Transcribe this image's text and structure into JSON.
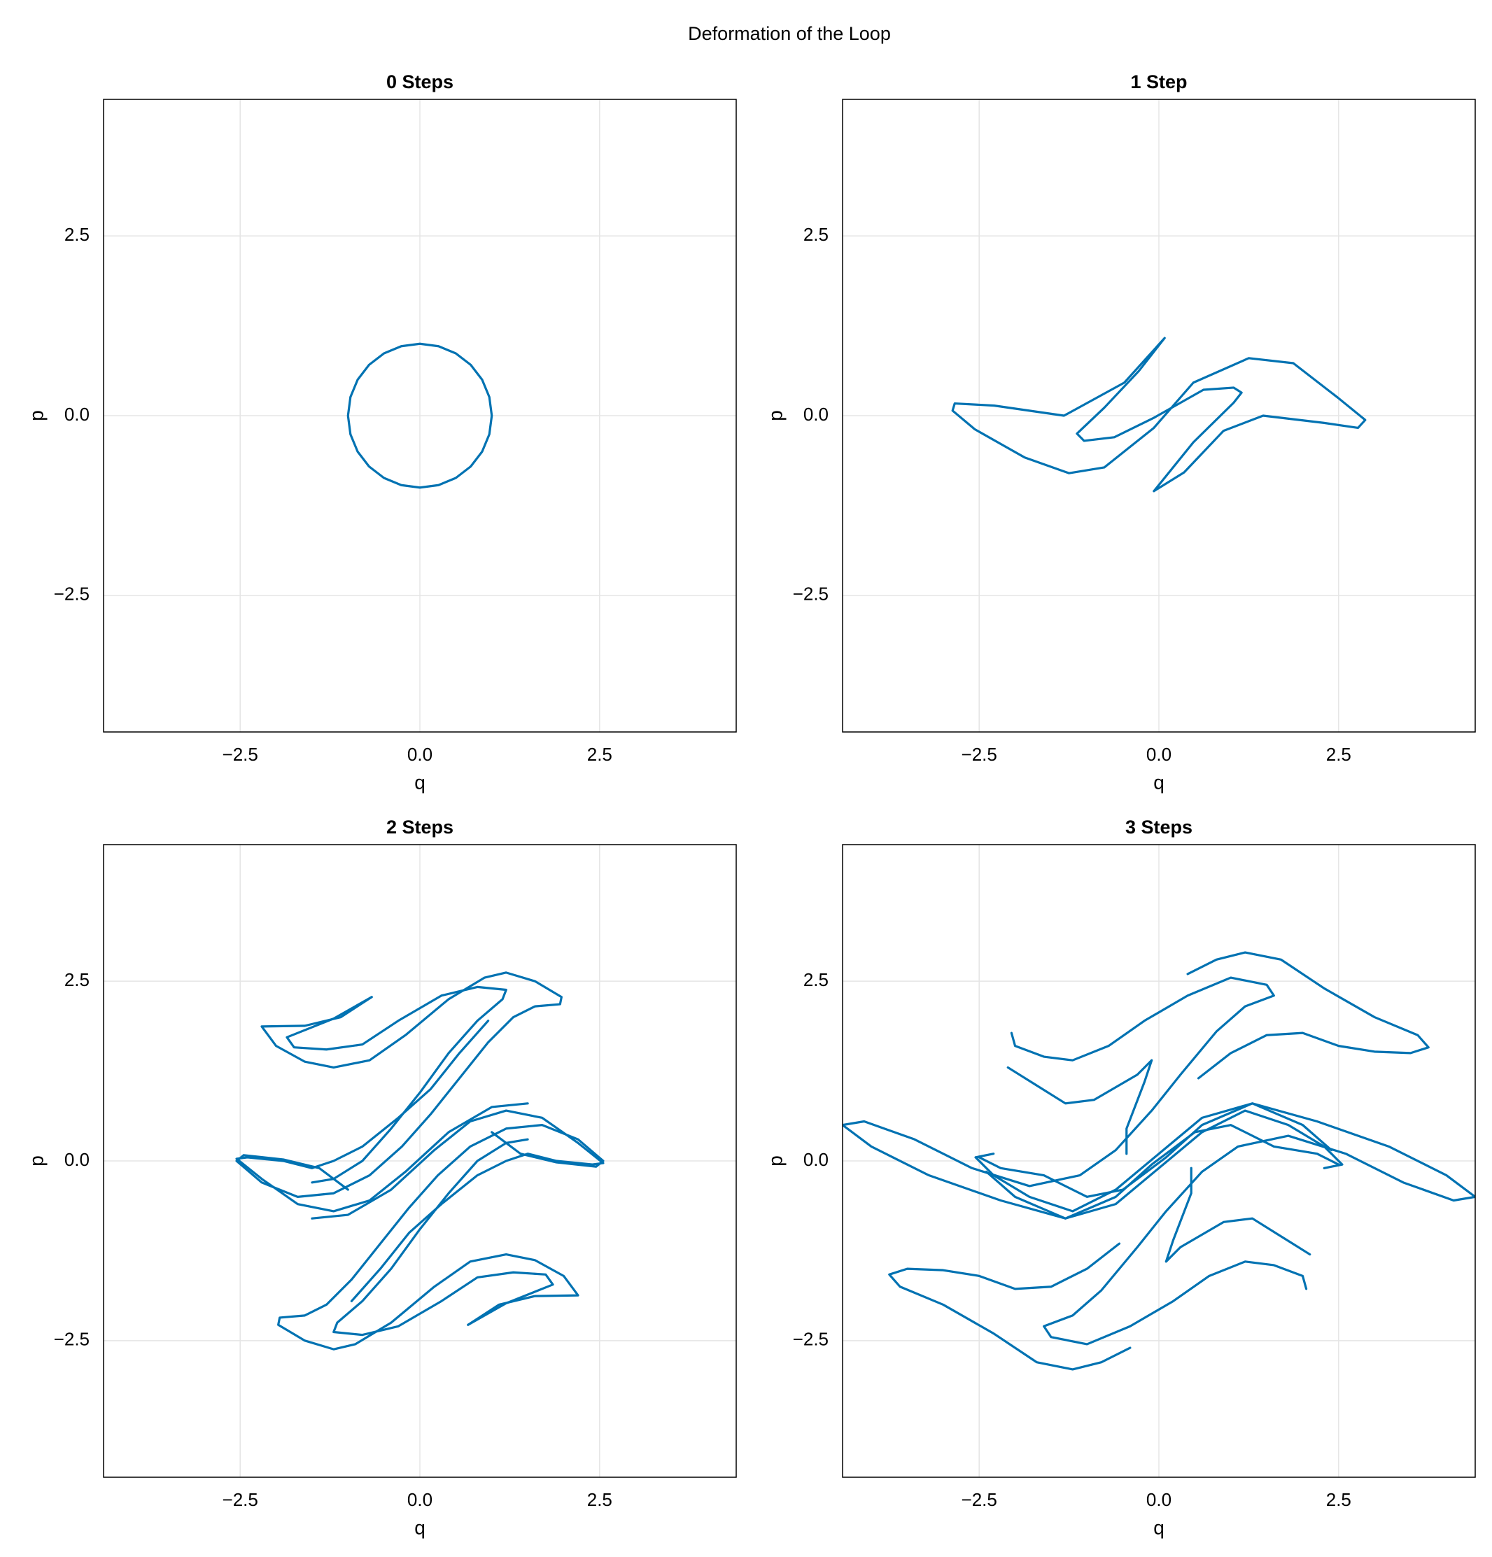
{
  "title": "Deformation of the Loop",
  "chart_data": [
    {
      "type": "line",
      "title": "0 Steps",
      "xlabel": "q",
      "ylabel": "p",
      "xlim": [
        -4.4,
        4.4
      ],
      "ylim": [
        -4.4,
        4.4
      ],
      "xticks": [
        {
          "value": -2.5,
          "label": "−2.5"
        },
        {
          "value": 0,
          "label": "0.0"
        },
        2.5
      ],
      "yticks": [
        {
          "value": -2.5,
          "label": "−2.5"
        },
        {
          "value": 0,
          "label": "0.0"
        },
        2.5
      ],
      "grid": true,
      "series": [
        {
          "color": "#0072b2",
          "x": [
            1,
            0.966,
            0.866,
            0.707,
            0.5,
            0.259,
            0,
            -0.259,
            -0.5,
            -0.707,
            -0.866,
            -0.966,
            -1,
            -0.966,
            -0.866,
            -0.707,
            -0.5,
            -0.259,
            0,
            0.259,
            0.5,
            0.707,
            0.866,
            0.966,
            1
          ],
          "y": [
            0,
            0.259,
            0.5,
            0.707,
            0.866,
            0.966,
            1,
            0.966,
            0.866,
            0.707,
            0.5,
            0.259,
            0,
            -0.259,
            -0.5,
            -0.707,
            -0.866,
            -0.966,
            -1,
            -0.966,
            -0.866,
            -0.707,
            -0.5,
            -0.259,
            0
          ]
        }
      ]
    },
    {
      "type": "line",
      "title": "1 Step",
      "xlabel": "q",
      "ylabel": "p",
      "xlim": [
        -4.4,
        4.4
      ],
      "ylim": [
        -4.4,
        4.4
      ],
      "xticks": [
        {
          "value": -2.5,
          "label": "−2.5"
        },
        {
          "value": 0,
          "label": "0.0"
        },
        2.5
      ],
      "yticks": [
        {
          "value": -2.5,
          "label": "−2.5"
        },
        {
          "value": 0,
          "label": "0.0"
        },
        2.5
      ],
      "grid": true,
      "series": [
        {
          "color": "#0072b2",
          "x": [
            0.08,
            -0.28,
            -0.76,
            -1.14,
            -1.04,
            -0.62,
            -0.07,
            0.62,
            1.04,
            1.15,
            1.04,
            0.48,
            -0.07,
            0.35,
            0.9,
            1.45,
            2.29,
            2.77,
            2.87,
            2.49,
            1.87,
            1.25,
            0.48,
            -0.07,
            -0.76,
            -1.25,
            -1.87,
            -2.56,
            -2.87,
            -2.84,
            -2.29,
            -1.32,
            -0.48,
            0.08
          ],
          "y": [
            1.08,
            0.62,
            0.11,
            -0.25,
            -0.35,
            -0.3,
            -0.03,
            0.36,
            0.39,
            0.32,
            0.18,
            -0.37,
            -1.05,
            -0.79,
            -0.21,
            0,
            -0.1,
            -0.17,
            -0.06,
            0.25,
            0.73,
            0.8,
            0.46,
            -0.17,
            -0.72,
            -0.8,
            -0.58,
            -0.19,
            0.07,
            0.17,
            0.14,
            0,
            0.46,
            1.08
          ]
        }
      ]
    },
    {
      "type": "line",
      "title": "2 Steps",
      "xlabel": "q",
      "ylabel": "p",
      "xlim": [
        -4.4,
        4.4
      ],
      "ylim": [
        -4.4,
        4.4
      ],
      "xticks": [
        {
          "value": -2.5,
          "label": "−2.5"
        },
        {
          "value": 0,
          "label": "0.0"
        },
        2.5
      ],
      "yticks": [
        {
          "value": -2.5,
          "label": "−2.5"
        },
        {
          "value": 0,
          "label": "0.0"
        },
        2.5
      ],
      "grid": true,
      "series": [
        {
          "color": "#0072b2",
          "x": [
            -0.67,
            -1.1,
            -1.6,
            -2.2,
            -2.0,
            -1.6,
            -1.2,
            -0.7,
            -0.2,
            0.4,
            0.9,
            1.2,
            1.6,
            1.97,
            1.95,
            1.6,
            1.3,
            0.95,
            0.55,
            0.15,
            -0.25,
            -0.7,
            -1.2,
            -1.7,
            -2.2,
            -2.55,
            -2.45,
            -1.9,
            -1.4,
            -1.0
          ],
          "y": [
            2.28,
            2.0,
            1.88,
            1.87,
            1.6,
            1.38,
            1.3,
            1.4,
            1.75,
            2.25,
            2.55,
            2.62,
            2.5,
            2.28,
            2.18,
            2.15,
            2.0,
            1.65,
            1.15,
            0.65,
            0.2,
            -0.2,
            -0.45,
            -0.5,
            -0.3,
            0,
            0.08,
            0.02,
            -0.1,
            -0.4
          ]
        },
        {
          "color": "#0072b2",
          "x": [
            -0.67,
            -1.2,
            -1.85,
            -1.75,
            -1.3,
            -0.8,
            -0.3,
            0.3,
            0.8,
            1.2,
            1.15,
            0.8,
            0.4,
            0,
            -0.4,
            -0.8,
            -1.2,
            -1.5
          ],
          "y": [
            2.28,
            1.98,
            1.72,
            1.58,
            1.55,
            1.62,
            1.95,
            2.3,
            2.42,
            2.38,
            2.25,
            1.95,
            1.5,
            0.95,
            0.45,
            0,
            -0.25,
            -0.3
          ]
        },
        {
          "color": "#0072b2",
          "x": [
            -1.5,
            -1.0,
            -0.4,
            0.2,
            0.7,
            1.2,
            1.7,
            2.2,
            2.55,
            2.4,
            1.9,
            1.5,
            1.2,
            0.8,
            0.3,
            -0.15,
            -0.55,
            -0.95
          ],
          "y": [
            -0.8,
            -0.75,
            -0.4,
            0.15,
            0.55,
            0.7,
            0.6,
            0.25,
            -0.03,
            -0.05,
            0,
            0.1,
            0,
            -0.2,
            -0.6,
            -1.0,
            -1.5,
            -1.95
          ]
        },
        {
          "color": "#0072b2",
          "x": [
            0.67,
            1.1,
            1.6,
            2.2,
            2.0,
            1.6,
            1.2,
            0.7,
            0.2,
            -0.4,
            -0.9,
            -1.2,
            -1.6,
            -1.97,
            -1.95,
            -1.6,
            -1.3,
            -0.95,
            -0.55,
            -0.15,
            0.25,
            0.7,
            1.2,
            1.7,
            2.2,
            2.55,
            2.45,
            1.9,
            1.4,
            1.0
          ],
          "y": [
            -2.28,
            -2.0,
            -1.88,
            -1.87,
            -1.6,
            -1.38,
            -1.3,
            -1.4,
            -1.75,
            -2.25,
            -2.55,
            -2.62,
            -2.5,
            -2.28,
            -2.18,
            -2.15,
            -2.0,
            -1.65,
            -1.15,
            -0.65,
            -0.2,
            0.2,
            0.45,
            0.5,
            0.3,
            0,
            -0.08,
            -0.02,
            0.1,
            0.4
          ]
        },
        {
          "color": "#0072b2",
          "x": [
            0.67,
            1.2,
            1.85,
            1.75,
            1.3,
            0.8,
            0.3,
            -0.3,
            -0.8,
            -1.2,
            -1.15,
            -0.8,
            -0.4,
            0,
            0.4,
            0.8,
            1.2,
            1.5
          ],
          "y": [
            -2.28,
            -1.98,
            -1.72,
            -1.58,
            -1.55,
            -1.62,
            -1.95,
            -2.3,
            -2.42,
            -2.38,
            -2.25,
            -1.95,
            -1.5,
            -0.95,
            -0.45,
            0,
            0.25,
            0.3
          ]
        },
        {
          "color": "#0072b2",
          "x": [
            1.5,
            1.0,
            0.4,
            -0.2,
            -0.7,
            -1.2,
            -1.7,
            -2.2,
            -2.55,
            -2.4,
            -1.9,
            -1.5,
            -1.2,
            -0.8,
            -0.3,
            0.15,
            0.55,
            0.95
          ],
          "y": [
            0.8,
            0.75,
            0.4,
            -0.15,
            -0.55,
            -0.7,
            -0.6,
            -0.25,
            0.03,
            0.05,
            0,
            -0.1,
            0,
            0.2,
            0.6,
            1.0,
            1.5,
            1.95
          ]
        }
      ]
    },
    {
      "type": "line",
      "title": "3 Steps",
      "xlabel": "q",
      "ylabel": "p",
      "xlim": [
        -4.4,
        4.4
      ],
      "ylim": [
        -4.4,
        4.4
      ],
      "xticks": [
        {
          "value": -2.5,
          "label": "−2.5"
        },
        {
          "value": 0,
          "label": "0.0"
        },
        2.5
      ],
      "yticks": [
        {
          "value": -2.5,
          "label": "−2.5"
        },
        {
          "value": 0,
          "label": "0.0"
        },
        2.5
      ],
      "grid": true,
      "series": [
        {
          "color": "#0072b2",
          "x": [
            0.4,
            0.8,
            1.2,
            1.7,
            2.3,
            3.0,
            3.6,
            3.75,
            3.5,
            3.0,
            2.5,
            2.0,
            1.5,
            1.0,
            0.55
          ],
          "y": [
            2.6,
            2.8,
            2.9,
            2.8,
            2.4,
            2.0,
            1.75,
            1.58,
            1.5,
            1.52,
            1.6,
            1.78,
            1.75,
            1.5,
            1.15
          ]
        },
        {
          "color": "#0072b2",
          "x": [
            -2.05,
            -2.0,
            -1.6,
            -1.2,
            -0.7,
            -0.2,
            0.4,
            1.0,
            1.5,
            1.6,
            1.2,
            0.8,
            0.3,
            -0.1,
            -0.6,
            -1.1,
            -1.8,
            -2.6,
            -3.4,
            -4.1,
            -4.4,
            -4.0,
            -3.2,
            -2.2,
            -1.3,
            -0.6,
            0,
            0.6,
            1.2,
            1.8,
            2.3,
            2.55,
            2.3
          ],
          "y": [
            1.78,
            1.6,
            1.45,
            1.4,
            1.6,
            1.95,
            2.3,
            2.55,
            2.45,
            2.3,
            2.15,
            1.8,
            1.2,
            0.7,
            0.15,
            -0.2,
            -0.35,
            -0.1,
            0.3,
            0.55,
            0.5,
            0.2,
            -0.2,
            -0.55,
            -0.8,
            -0.6,
            -0.1,
            0.4,
            0.7,
            0.5,
            0.2,
            -0.05,
            -0.1
          ]
        },
        {
          "color": "#0072b2",
          "x": [
            -2.1,
            -1.7,
            -1.3,
            -0.9,
            -0.3,
            -0.1,
            -0.2,
            -0.45,
            -0.45
          ],
          "y": [
            1.3,
            1.05,
            0.8,
            0.85,
            1.2,
            1.4,
            1.1,
            0.45,
            0.1
          ]
        },
        {
          "color": "#0072b2",
          "x": [
            -2.5,
            -2.2,
            -1.6,
            -1.0,
            -0.5,
            0.1,
            0.6,
            1.3,
            2.0,
            2.4
          ],
          "y": [
            0.05,
            -0.1,
            -0.2,
            -0.5,
            -0.4,
            0.05,
            0.5,
            0.8,
            0.5,
            0.15
          ]
        },
        {
          "color": "#0072b2",
          "x": [
            -0.4,
            -0.8,
            -1.2,
            -1.7,
            -2.3,
            -3.0,
            -3.6,
            -3.75,
            -3.5,
            -3.0,
            -2.5,
            -2.0,
            -1.5,
            -1.0,
            -0.55
          ],
          "y": [
            -2.6,
            -2.8,
            -2.9,
            -2.8,
            -2.4,
            -2.0,
            -1.75,
            -1.58,
            -1.5,
            -1.52,
            -1.6,
            -1.78,
            -1.75,
            -1.5,
            -1.15
          ]
        },
        {
          "color": "#0072b2",
          "x": [
            2.05,
            2.0,
            1.6,
            1.2,
            0.7,
            0.2,
            -0.4,
            -1.0,
            -1.5,
            -1.6,
            -1.2,
            -0.8,
            -0.3,
            0.1,
            0.6,
            1.1,
            1.8,
            2.6,
            3.4,
            4.1,
            4.4,
            4.0,
            3.2,
            2.2,
            1.3,
            0.6,
            0,
            -0.6,
            -1.2,
            -1.8,
            -2.3,
            -2.55,
            -2.3
          ],
          "y": [
            -1.78,
            -1.6,
            -1.45,
            -1.4,
            -1.6,
            -1.95,
            -2.3,
            -2.55,
            -2.45,
            -2.3,
            -2.15,
            -1.8,
            -1.2,
            -0.7,
            -0.15,
            0.2,
            0.35,
            0.1,
            -0.3,
            -0.55,
            -0.5,
            -0.2,
            0.2,
            0.55,
            0.8,
            0.6,
            0.1,
            -0.4,
            -0.7,
            -0.5,
            -0.2,
            0.05,
            0.1
          ]
        },
        {
          "color": "#0072b2",
          "x": [
            2.1,
            1.7,
            1.3,
            0.9,
            0.3,
            0.1,
            0.2,
            0.45,
            0.45
          ],
          "y": [
            -1.3,
            -1.05,
            -0.8,
            -0.85,
            -1.2,
            -1.4,
            -1.1,
            -0.45,
            -0.1
          ]
        },
        {
          "color": "#0072b2",
          "x": [
            2.5,
            2.2,
            1.6,
            1.0,
            0.5,
            -0.1,
            -0.6,
            -1.3,
            -2.0,
            -2.4
          ],
          "y": [
            -0.05,
            0.1,
            0.2,
            0.5,
            0.4,
            -0.05,
            -0.5,
            -0.8,
            -0.5,
            -0.15
          ]
        }
      ]
    }
  ]
}
